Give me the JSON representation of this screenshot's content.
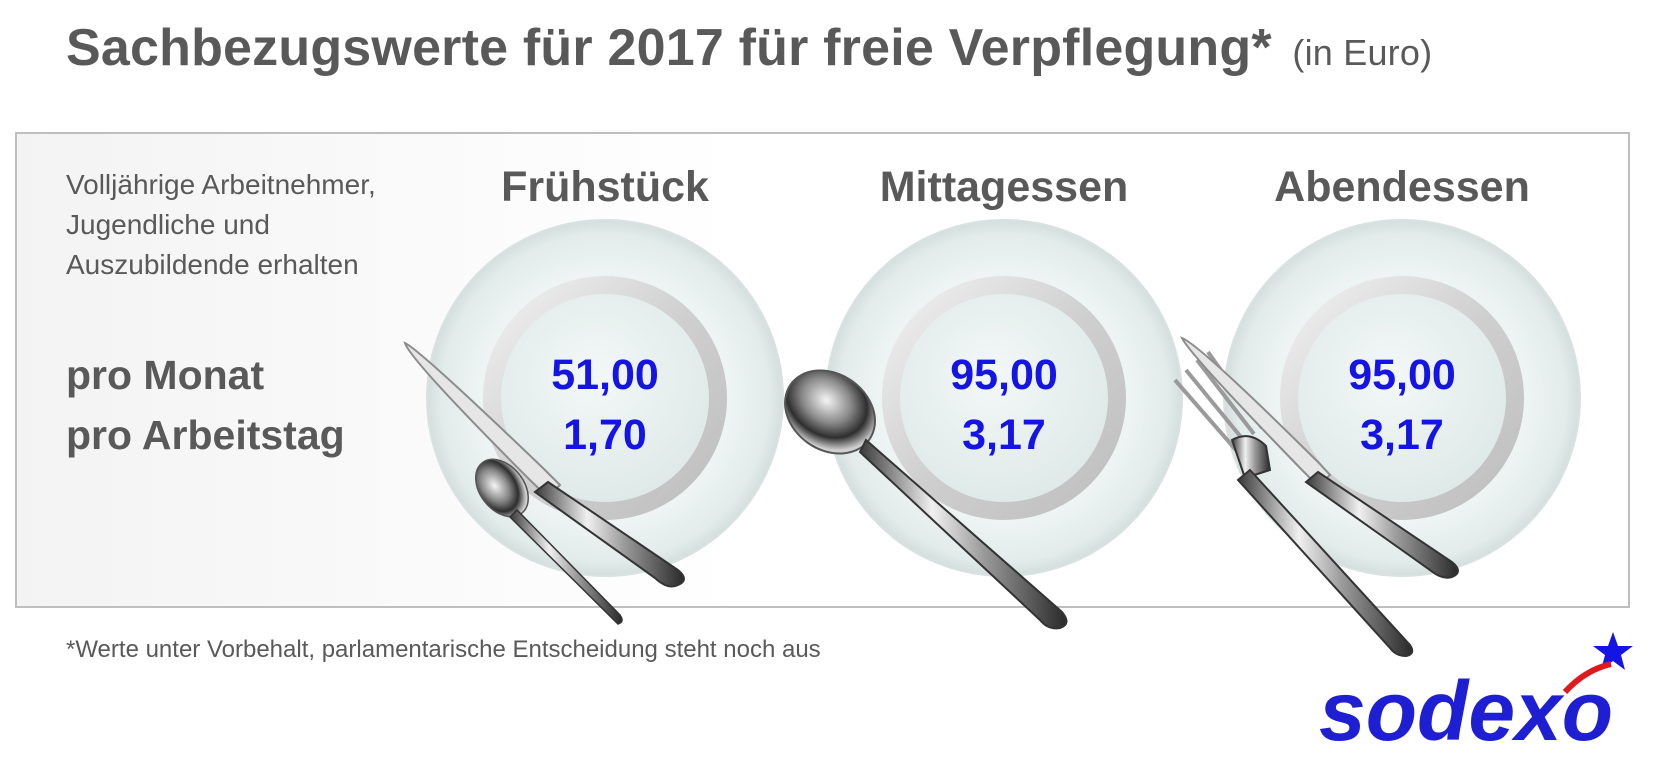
{
  "title": {
    "main": "Sachbezugswerte für 2017 für freie Verpflegung*",
    "unit": "(in Euro)"
  },
  "intro": {
    "lines": [
      "Volljährige Arbeitnehmer,",
      "Jugendliche und",
      "Auszubildende erhalten"
    ]
  },
  "rows": {
    "per_month": "pro Monat",
    "per_workday": "pro Arbeitstag"
  },
  "meals": [
    {
      "name": "Frühstück",
      "per_month": "51,00",
      "per_workday": "1,70"
    },
    {
      "name": "Mittagessen",
      "per_month": "95,00",
      "per_workday": "3,17"
    },
    {
      "name": "Abendessen",
      "per_month": "95,00",
      "per_workday": "3,17"
    }
  ],
  "footnote": "*Werte unter Vorbehalt, parlamentarische Entscheidung steht noch aus",
  "brand": {
    "logo_text": "sodexo",
    "color": "#1e1ed2",
    "accent": "#1414e6"
  },
  "icons": [
    "plate-icon",
    "knife-icon",
    "spoon-icon",
    "teaspoon-icon",
    "fork-icon",
    "star-icon"
  ]
}
